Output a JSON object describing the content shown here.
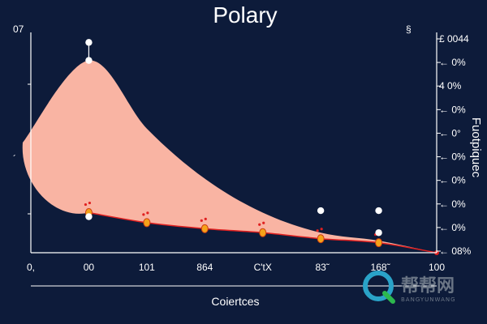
{
  "chart_data": {
    "type": "area",
    "title": "Polary",
    "xlabel": "Coiertces",
    "ylabel": "Fuotpiquec",
    "x_ticks": [
      "0,",
      "00",
      "101",
      "864",
      "C'tX",
      "83̃",
      "168̃",
      "100"
    ],
    "y_ticks_left": [
      "07",
      "´"
    ],
    "y_ticks_right": [
      "£ 0044",
      "← 0%",
      "4 0%",
      "← 0%",
      "← 0°",
      "← 0%",
      "← 0%",
      "← 0%",
      "← 0%",
      "← 08%"
    ],
    "corner_mark": "§",
    "x": [
      0,
      1,
      2,
      3,
      4,
      5,
      6,
      7
    ],
    "series": [
      {
        "values": [
          0.12,
          0.1,
          0.05,
          0.02,
          0.0,
          -0.03,
          -0.05,
          -0.1
        ],
        "markers": [
          null,
          0.1,
          0.05,
          0.02,
          0.0,
          -0.03,
          -0.05,
          null
        ]
      }
    ],
    "band": {
      "upper": [
        0.66,
        0.86,
        0.52,
        0.27,
        0.1,
        0.0,
        -0.04,
        -0.1
      ],
      "lower": [
        0.12,
        0.1,
        0.05,
        0.02,
        0.0,
        -0.03,
        -0.05,
        -0.1
      ]
    },
    "outliers": [
      {
        "x": 1,
        "y": 0.95
      },
      {
        "x": 1,
        "y": 0.86
      },
      {
        "x": 1,
        "y": 0.08
      },
      {
        "x": 5,
        "y": 0.11
      },
      {
        "x": 6,
        "y": 0.11
      },
      {
        "x": 6,
        "y": 0.0
      }
    ],
    "ylim": [
      -0.1,
      1.0
    ],
    "xlim": [
      0,
      7
    ],
    "grid": false,
    "colors": {
      "background": "#0d1b3a",
      "band": "#f9b4a3",
      "line": "#e02020",
      "marker": "#f5a31a",
      "marker_edge": "#d04010",
      "outlier": "#ffffff",
      "axis": "#ffffff"
    }
  },
  "watermark": {
    "text": "帮帮网",
    "subtext": "BANGYUNWANG"
  }
}
